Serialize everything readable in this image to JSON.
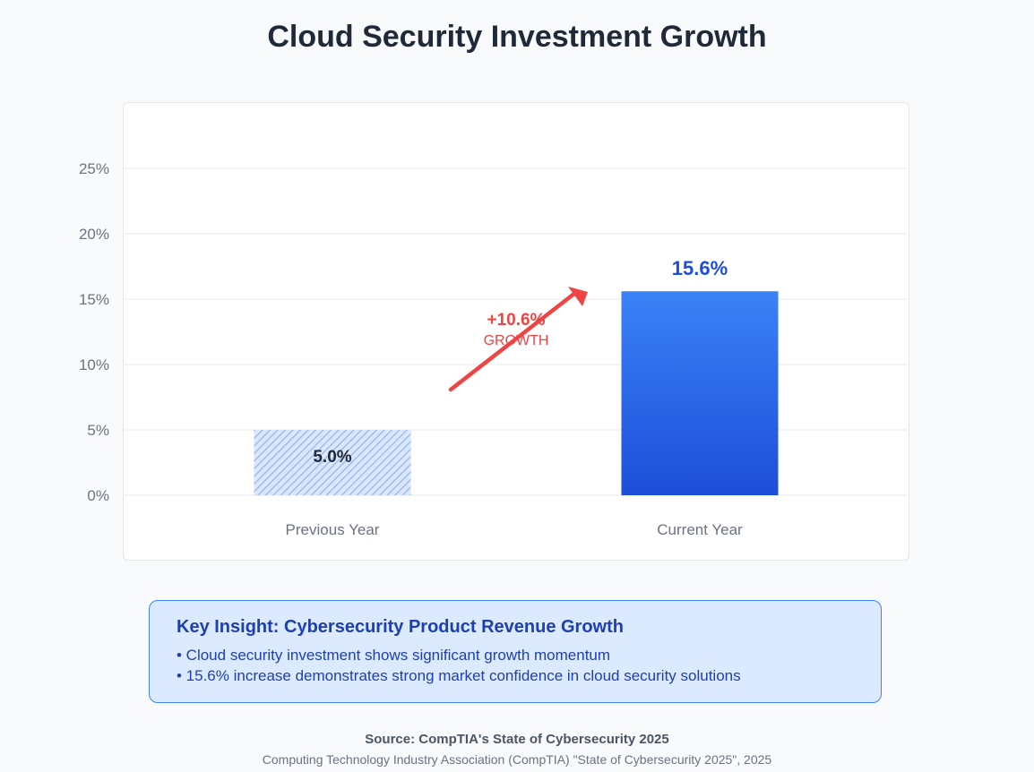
{
  "title": "Cloud Security Investment Growth",
  "chart_data": {
    "type": "bar",
    "categories": [
      "Previous Year",
      "Current Year"
    ],
    "values": [
      5.0,
      15.6
    ],
    "value_labels": [
      "5.0%",
      "15.6%"
    ],
    "y_ticks": [
      "0%",
      "5%",
      "10%",
      "15%",
      "20%",
      "25%"
    ],
    "ylim": [
      0,
      25
    ],
    "grid": true,
    "annotation": {
      "value": "+10.6%",
      "label": "GROWTH"
    },
    "colors": {
      "previous": "#93b4f5",
      "current_top": "#3b82f6",
      "current_bottom": "#1d4ed8",
      "annotation": "#ef4444",
      "current_label": "#1d4ed8"
    }
  },
  "insight": {
    "title": "Key Insight: Cybersecurity Product Revenue Growth",
    "bullets": [
      "• Cloud security investment shows significant growth momentum",
      "• 15.6% increase demonstrates strong market confidence in cloud security solutions"
    ]
  },
  "source": "Source: CompTIA's State of Cybersecurity 2025",
  "citation": "Computing Technology Industry Association (CompTIA) \"State of Cybersecurity 2025\", 2025"
}
